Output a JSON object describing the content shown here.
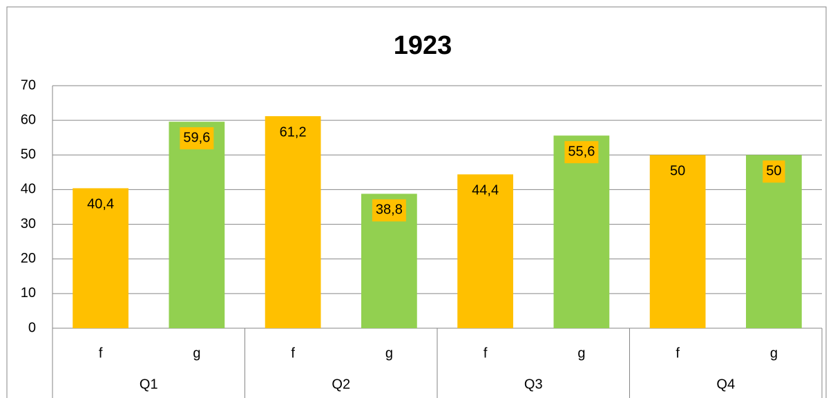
{
  "chart_data": {
    "type": "bar",
    "title": "1923",
    "categories": [
      "Q1",
      "Q2",
      "Q3",
      "Q4"
    ],
    "series": [
      {
        "name": "f",
        "color": "#ffc000",
        "values": [
          40.4,
          61.2,
          44.4,
          50
        ],
        "value_labels": [
          "40,4",
          "61,2",
          "44,4",
          "50"
        ]
      },
      {
        "name": "g",
        "color": "#92d050",
        "values": [
          59.6,
          38.8,
          55.6,
          50
        ],
        "value_labels": [
          "59,6",
          "38,8",
          "55,6",
          "50"
        ]
      }
    ],
    "label_color": "#ffc000",
    "ylim": [
      0,
      70
    ],
    "yticks": [
      0,
      10,
      20,
      30,
      40,
      50,
      60,
      70
    ],
    "grid": true
  }
}
